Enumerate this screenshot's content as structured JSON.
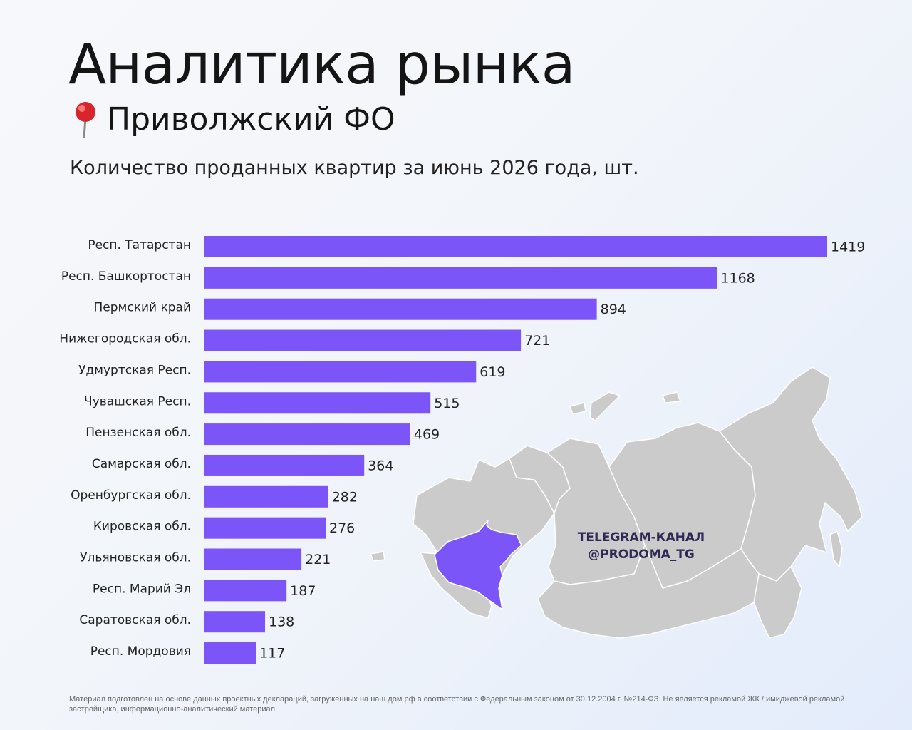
{
  "header": {
    "title": "Аналитика рынка",
    "subtitle": "Приволжский ФО",
    "pin_icon": "red-pushpin-icon"
  },
  "chart_data": {
    "type": "bar",
    "orientation": "horizontal",
    "title": "Количество проданных квартир за июнь 2026 года, шт.",
    "categories": [
      "Респ. Татарстан",
      "Респ. Башкортостан",
      "Пермский край",
      "Нижегородская обл.",
      "Удмуртская Респ.",
      "Чувашская Респ.",
      "Пензенская обл.",
      "Самарская обл.",
      "Оренбургская обл.",
      "Кировская обл.",
      "Ульяновская обл.",
      "Респ. Марий Эл",
      "Саратовская обл.",
      "Респ. Мордовия"
    ],
    "values": [
      1419,
      1168,
      894,
      721,
      619,
      515,
      469,
      364,
      282,
      276,
      221,
      187,
      138,
      117
    ],
    "data_labels": [
      "1419",
      "1168",
      "894",
      "721",
      "619",
      "515",
      "469",
      "364",
      "282",
      "276",
      "221",
      "187",
      "138",
      "117"
    ],
    "xlim": [
      0,
      1419
    ],
    "bar_color": "#7b55f7",
    "grid": false,
    "axes_visible": false
  },
  "map": {
    "highlight_color": "#7b55f7",
    "base_color": "#cbcbcb",
    "watermark_line1": "TELEGRAM-КАНАЛ",
    "watermark_line2": "@PRODOMA_TG"
  },
  "footer": {
    "note": "Материал подготовлен на основе данных проектных деклараций, загруженных на наш.дом.рф в соответствии с Федеральным законом от 30.12.2004 г. №214-ФЗ. Не является рекламой ЖК / имиджевой рекламой застройщика, информационно-аналитический материал"
  }
}
